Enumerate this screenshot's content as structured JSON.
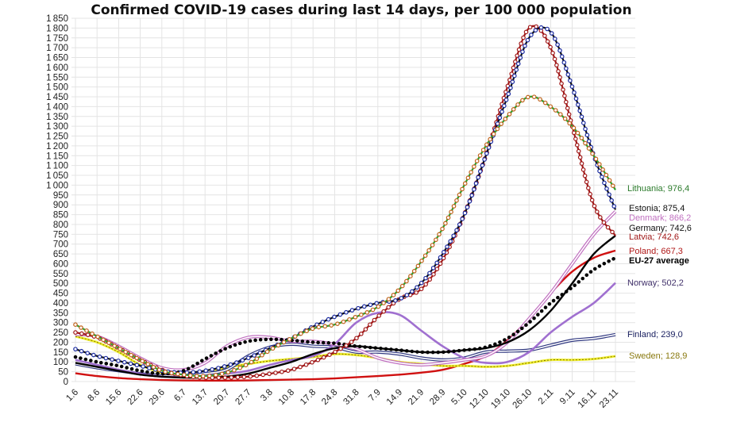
{
  "chart_data": {
    "type": "line",
    "title": "Confirmed COVID-19 cases during last 14 days, per 100 000 population",
    "xlabel": "",
    "ylabel": "",
    "ylim": [
      0,
      1850
    ],
    "ytick_step": 50,
    "grid": true,
    "legend": "end-of-line labels (right)",
    "categories": [
      "1.6",
      "8.6",
      "15.6",
      "22.6",
      "29.6",
      "6.7",
      "13.7",
      "20.7",
      "27.7",
      "3.8",
      "10.8",
      "17.8",
      "24.8",
      "31.8",
      "7.9",
      "14.9",
      "21.9",
      "28.9",
      "5.10",
      "12.10",
      "19.10",
      "26.10",
      "2.11",
      "9.11",
      "16.11",
      "23.11"
    ],
    "series": [
      {
        "name": "Lithuania",
        "end_label": "Lithuania; 976,4",
        "color": "#2e9e2e",
        "marker": "#c0621a",
        "style": "marker-line",
        "values": [
          290,
          230,
          170,
          110,
          55,
          35,
          28,
          45,
          90,
          160,
          220,
          270,
          290,
          330,
          380,
          470,
          610,
          780,
          1000,
          1200,
          1350,
          1450,
          1400,
          1300,
          1150,
          976
        ]
      },
      {
        "name": "Estonia",
        "end_label": "Estonia; 875,4",
        "color": "#111111",
        "marker": "#1a2aa0",
        "style": "marker-line",
        "values": [
          165,
          130,
          105,
          80,
          55,
          45,
          55,
          80,
          120,
          170,
          220,
          280,
          330,
          370,
          400,
          420,
          500,
          650,
          850,
          1150,
          1450,
          1750,
          1780,
          1500,
          1150,
          875
        ]
      },
      {
        "name": "Denmark",
        "end_label": "Denmark; 866,2",
        "color": "#c070c0",
        "marker": null,
        "style": "double",
        "values": [
          240,
          230,
          180,
          120,
          70,
          60,
          95,
          180,
          225,
          225,
          205,
          205,
          190,
          165,
          120,
          95,
          85,
          95,
          110,
          130,
          200,
          320,
          450,
          600,
          750,
          866
        ]
      },
      {
        "name": "Germany",
        "end_label": "Germany; 742,6",
        "color": "#000000",
        "marker": null,
        "style": "solid-thick",
        "values": [
          95,
          75,
          55,
          35,
          25,
          20,
          20,
          25,
          40,
          70,
          100,
          140,
          170,
          180,
          170,
          160,
          150,
          150,
          160,
          170,
          200,
          260,
          360,
          500,
          650,
          743
        ]
      },
      {
        "name": "Latvia",
        "end_label": "Latvia; 742,6",
        "color": "#a01818",
        "marker": "#ffffff",
        "style": "marker-line",
        "values": [
          250,
          225,
          170,
          110,
          60,
          30,
          20,
          20,
          25,
          40,
          60,
          100,
          150,
          220,
          330,
          420,
          470,
          620,
          850,
          1150,
          1500,
          1800,
          1700,
          1300,
          900,
          743
        ]
      },
      {
        "name": "Poland",
        "end_label": "Poland; 667,3",
        "color": "#d01010",
        "marker": null,
        "style": "solid-thick",
        "values": [
          42,
          28,
          18,
          12,
          8,
          6,
          5,
          5,
          6,
          8,
          10,
          12,
          16,
          22,
          28,
          35,
          45,
          60,
          90,
          130,
          210,
          320,
          450,
          560,
          630,
          667
        ]
      },
      {
        "name": "EU-27 average",
        "end_label": "EU-27 average",
        "color": "#000000",
        "marker": null,
        "style": "dotted",
        "values": [
          125,
          100,
          80,
          55,
          40,
          55,
          115,
          170,
          205,
          215,
          210,
          200,
          195,
          180,
          170,
          160,
          150,
          150,
          160,
          175,
          220,
          300,
          400,
          480,
          570,
          630
        ]
      },
      {
        "name": "Norway",
        "end_label": "Norway; 502,2",
        "color": "#a070d0",
        "marker": null,
        "style": "solid-thick",
        "values": [
          110,
          85,
          60,
          40,
          25,
          25,
          30,
          40,
          55,
          85,
          110,
          130,
          190,
          300,
          350,
          340,
          260,
          180,
          120,
          95,
          100,
          150,
          250,
          330,
          400,
          502
        ]
      },
      {
        "name": "Finland",
        "end_label": "Finland; 239,0",
        "color": "#303880",
        "marker": null,
        "style": "double",
        "values": [
          90,
          70,
          55,
          40,
          30,
          30,
          40,
          60,
          130,
          175,
          190,
          180,
          175,
          150,
          150,
          140,
          120,
          110,
          120,
          150,
          155,
          160,
          185,
          210,
          220,
          239
        ]
      },
      {
        "name": "Sweden",
        "end_label": "Sweden; 128,9",
        "color": "#c0b010",
        "marker": null,
        "style": "dashed-yellow",
        "values": [
          230,
          200,
          150,
          85,
          45,
          30,
          40,
          70,
          90,
          105,
          115,
          125,
          140,
          135,
          120,
          100,
          90,
          80,
          80,
          75,
          80,
          95,
          110,
          110,
          115,
          129
        ]
      }
    ]
  }
}
